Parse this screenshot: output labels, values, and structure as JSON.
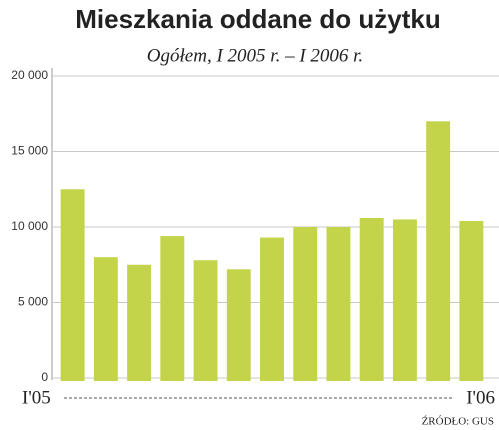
{
  "chart_data": {
    "type": "bar",
    "title": "Mieszkania oddane do użytku",
    "subtitle": "Ogółem, I 2005 r. – I 2006 r.",
    "source": "ŹRÓDŁO: GUS",
    "categories": [
      "I'05",
      null,
      null,
      null,
      null,
      null,
      null,
      null,
      null,
      null,
      null,
      null,
      "I'06"
    ],
    "values": [
      12500,
      8000,
      7500,
      9400,
      7800,
      7200,
      9300,
      10000,
      10000,
      10600,
      10500,
      17000,
      10400
    ],
    "color": "#c3d44b",
    "ylim": [
      0,
      20000
    ],
    "yticks": [
      0,
      {
        "value": 5000,
        "label": "5 000"
      },
      {
        "value": 10000,
        "label": "10 000"
      },
      {
        "value": 15000,
        "label": "15 000"
      },
      {
        "value": 20000,
        "label": "20 000"
      }
    ],
    "grid": true
  }
}
